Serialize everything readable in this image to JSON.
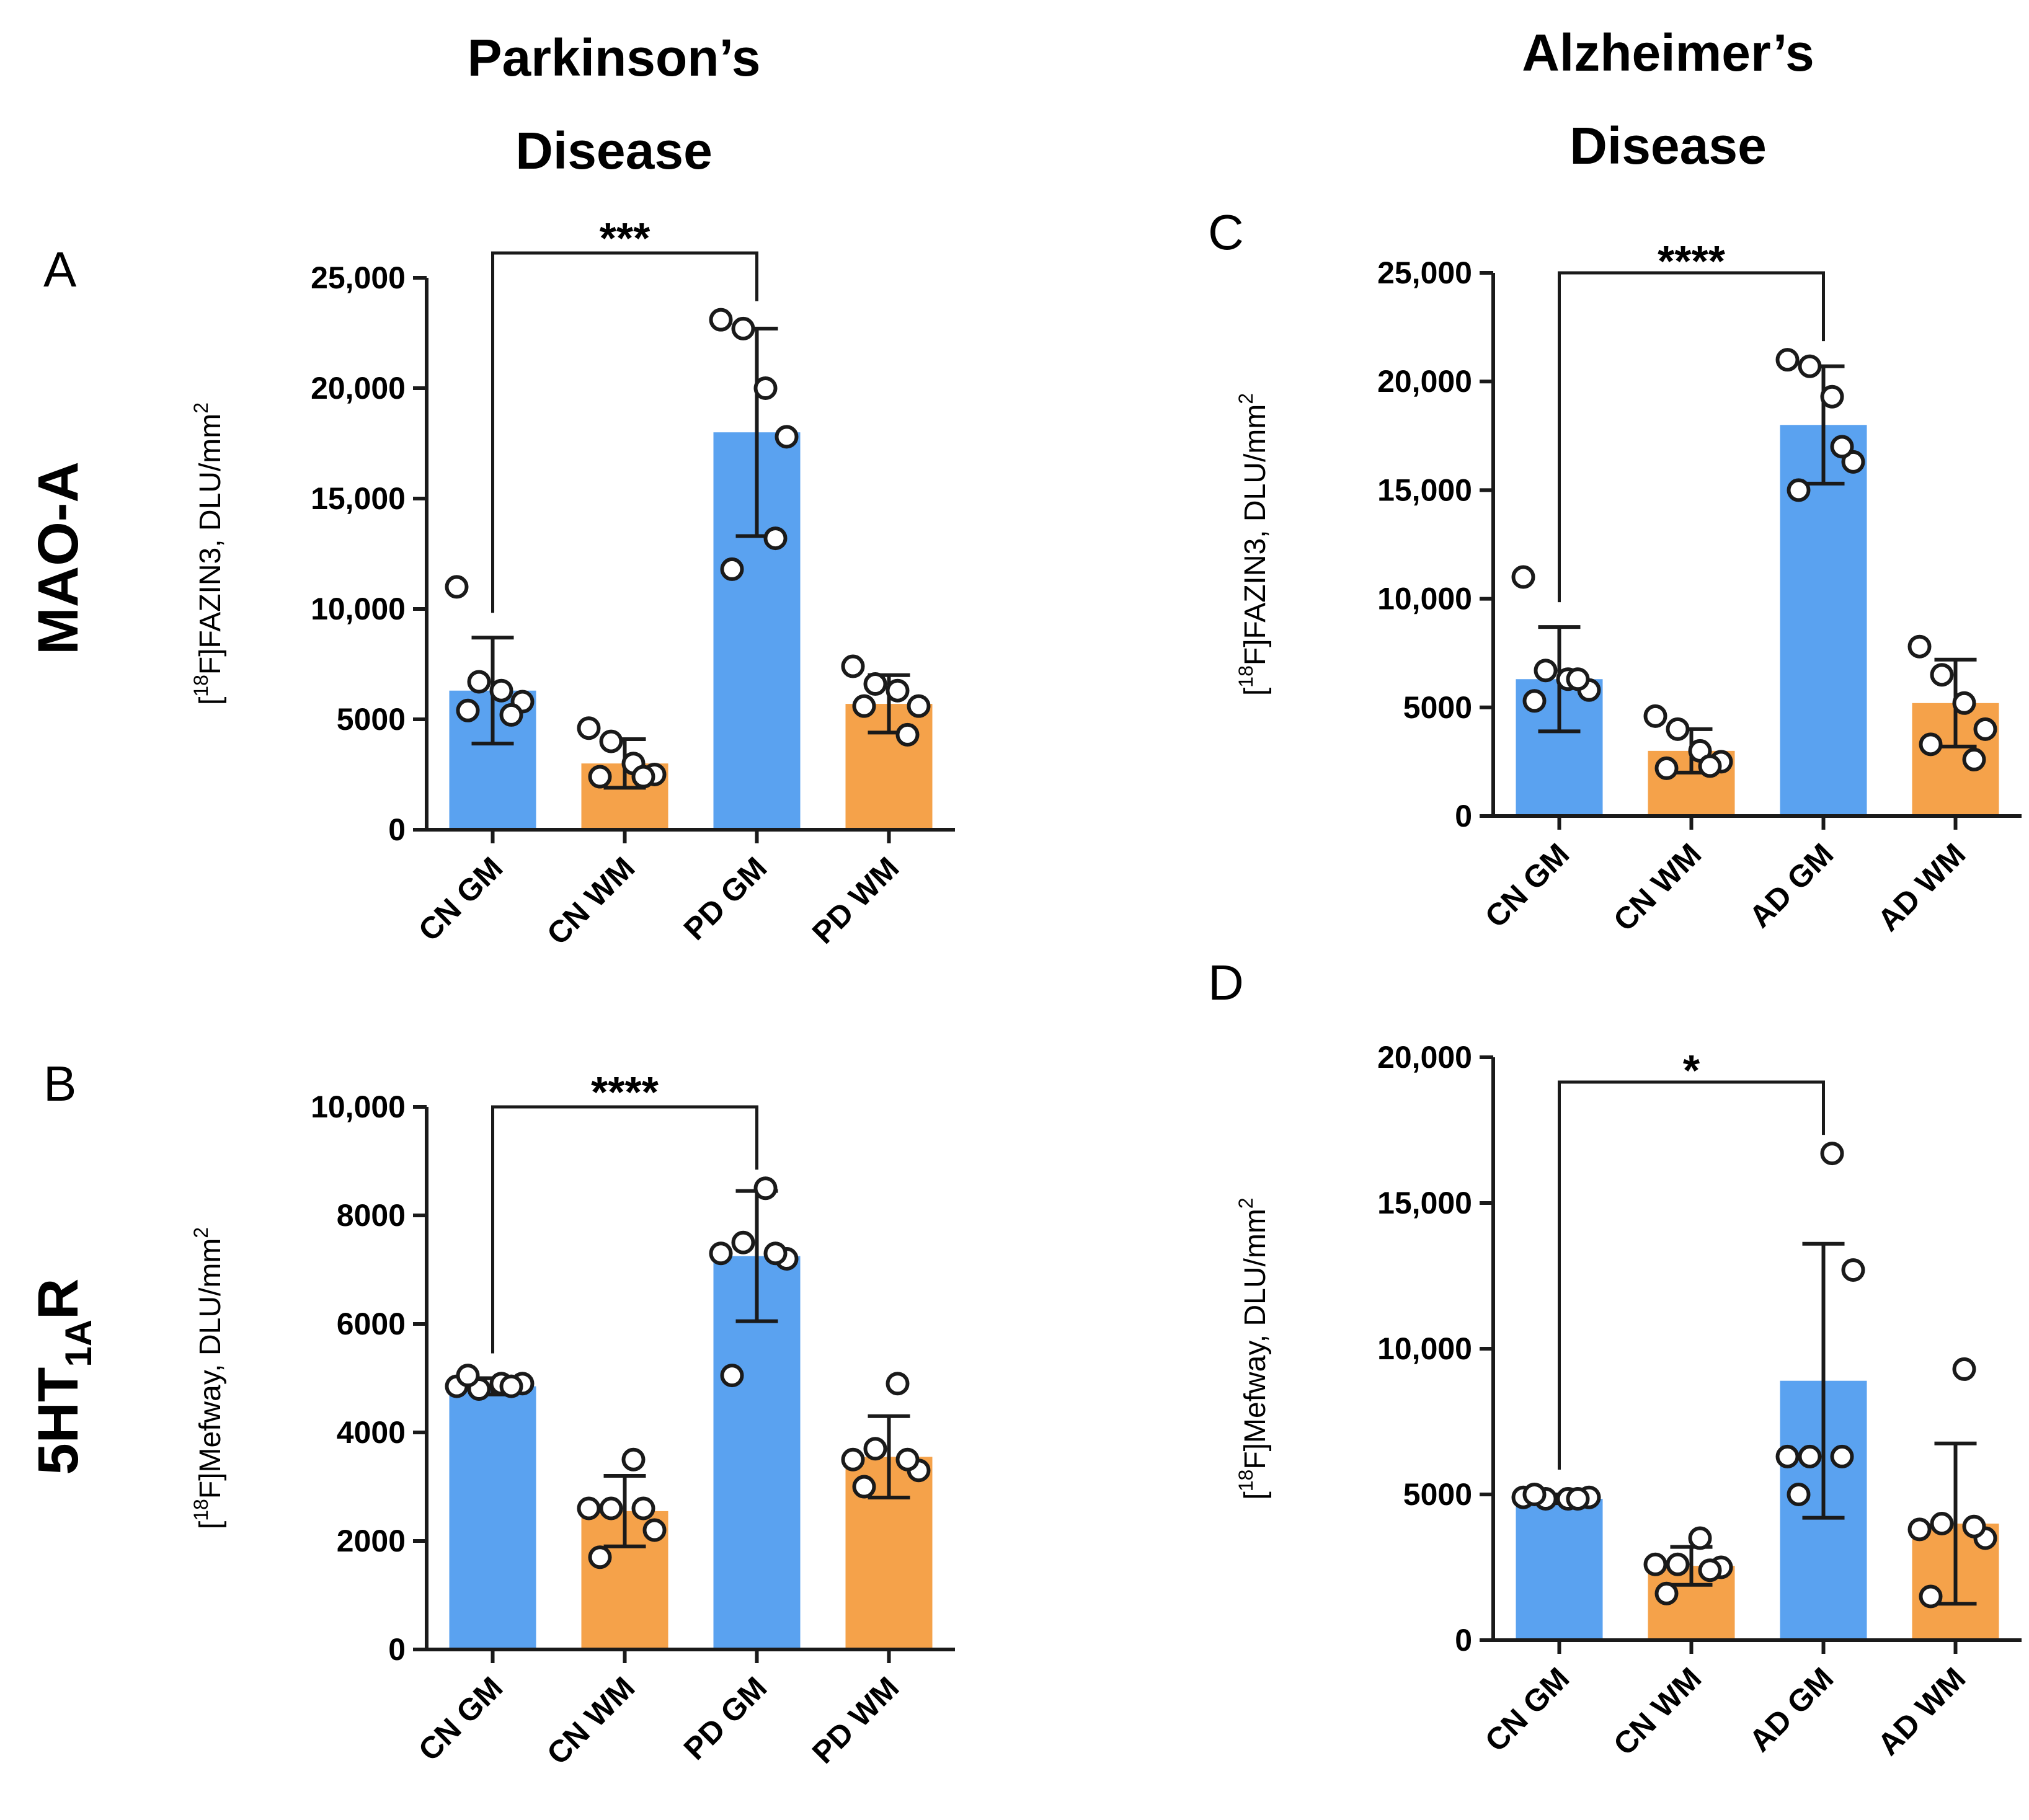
{
  "figure": {
    "column_titles": [
      {
        "line1": "Parkinson’s",
        "line2": "Disease"
      },
      {
        "line1": "Alzheimer’s",
        "line2": "Disease"
      }
    ],
    "row_labels": [
      {
        "main": "MAO-A",
        "sub": ""
      },
      {
        "main": "5HT",
        "sub": "1A",
        "suffix": "R"
      }
    ]
  },
  "colors": {
    "gm": "#5aa2f0",
    "wm": "#f5a24a",
    "axis": "#1a1a1a",
    "point_fill": "#ffffff"
  },
  "chart_data": [
    {
      "panel": "A",
      "type": "bar",
      "ylabel_pre": "[",
      "ylabel_sup": "18",
      "ylabel_main": "F]FAZIN3, DLU/mm",
      "ylabel_sup2": "2",
      "ylim": [
        0,
        25000
      ],
      "yticks": [
        0,
        5000,
        10000,
        15000,
        20000,
        25000
      ],
      "ytick_labels": [
        "0",
        "5000",
        "10,000",
        "15,000",
        "20,000",
        "25,000"
      ],
      "categories": [
        "CN GM",
        "CN WM",
        "PD GM",
        "PD WM"
      ],
      "bar_colors": [
        "gm",
        "wm",
        "gm",
        "wm"
      ],
      "values": [
        6300,
        3000,
        18000,
        5700
      ],
      "sd": [
        2400,
        1100,
        4700,
        1300
      ],
      "points": [
        [
          11000,
          6700,
          6300,
          5800,
          5400,
          5200
        ],
        [
          4600,
          4000,
          3000,
          2500,
          2400,
          2400
        ],
        [
          23100,
          22700,
          20000,
          17800,
          11800,
          13200
        ],
        [
          7400,
          6600,
          6300,
          5600,
          5600,
          4300
        ]
      ],
      "significance": {
        "from": 0,
        "to": 2,
        "label": "***"
      }
    },
    {
      "panel": "B",
      "type": "bar",
      "ylabel_pre": "[",
      "ylabel_sup": "18",
      "ylabel_main": "F]Mefway, DLU/mm",
      "ylabel_sup2": "2",
      "ylim": [
        0,
        10000
      ],
      "yticks": [
        0,
        2000,
        4000,
        6000,
        8000,
        10000
      ],
      "ytick_labels": [
        "0",
        "2000",
        "4000",
        "6000",
        "8000",
        "10,000"
      ],
      "categories": [
        "CN GM",
        "CN WM",
        "PD GM",
        "PD WM"
      ],
      "bar_colors": [
        "gm",
        "wm",
        "gm",
        "wm"
      ],
      "values": [
        4850,
        2550,
        7250,
        3550
      ],
      "sd": [
        150,
        650,
        1200,
        750
      ],
      "points": [
        [
          4850,
          4800,
          4900,
          4900,
          5050,
          4850
        ],
        [
          2600,
          2600,
          3500,
          2200,
          1700,
          2600
        ],
        [
          7300,
          7500,
          8500,
          7200,
          5050,
          7300
        ],
        [
          3500,
          3700,
          4900,
          3300,
          3000,
          3500
        ]
      ],
      "significance": {
        "from": 0,
        "to": 2,
        "label": "****"
      }
    },
    {
      "panel": "C",
      "type": "bar",
      "ylabel_pre": "[",
      "ylabel_sup": "18",
      "ylabel_main": "F]FAZIN3, DLU/mm",
      "ylabel_sup2": "2",
      "ylim": [
        0,
        25000
      ],
      "yticks": [
        0,
        5000,
        10000,
        15000,
        20000,
        25000
      ],
      "ytick_labels": [
        "0",
        "5000",
        "10,000",
        "15,000",
        "20,000",
        "25,000"
      ],
      "categories": [
        "CN GM",
        "CN WM",
        "AD GM",
        "AD WM"
      ],
      "bar_colors": [
        "gm",
        "wm",
        "gm",
        "wm"
      ],
      "values": [
        6300,
        3000,
        18000,
        5200
      ],
      "sd": [
        2400,
        1000,
        2700,
        2000
      ],
      "points": [
        [
          11000,
          6700,
          6300,
          5800,
          5300,
          6300
        ],
        [
          4600,
          4000,
          3000,
          2500,
          2200,
          2300
        ],
        [
          21000,
          20700,
          19300,
          16300,
          15000,
          17000
        ],
        [
          7800,
          6500,
          5200,
          4000,
          3300,
          2600
        ]
      ],
      "significance": {
        "from": 0,
        "to": 2,
        "label": "****"
      }
    },
    {
      "panel": "D",
      "type": "bar",
      "ylabel_pre": "[",
      "ylabel_sup": "18",
      "ylabel_main": "F]Mefway, DLU/mm",
      "ylabel_sup2": "2",
      "ylim": [
        0,
        20000
      ],
      "yticks": [
        0,
        5000,
        10000,
        15000,
        20000
      ],
      "ytick_labels": [
        "0",
        "5000",
        "10,000",
        "15,000",
        "20,000"
      ],
      "categories": [
        "CN GM",
        "CN WM",
        "AD GM",
        "AD WM"
      ],
      "bar_colors": [
        "gm",
        "wm",
        "gm",
        "wm"
      ],
      "values": [
        4850,
        2550,
        8900,
        4000
      ],
      "sd": [
        150,
        650,
        4700,
        2750
      ],
      "points": [
        [
          4900,
          4850,
          4850,
          4900,
          5000,
          4850
        ],
        [
          2600,
          2600,
          3500,
          2500,
          1600,
          2400
        ],
        [
          6300,
          6300,
          16700,
          12700,
          5000,
          6300
        ],
        [
          3800,
          4000,
          9300,
          3500,
          1500,
          3900
        ]
      ],
      "significance": {
        "from": 0,
        "to": 2,
        "label": "*"
      }
    }
  ]
}
